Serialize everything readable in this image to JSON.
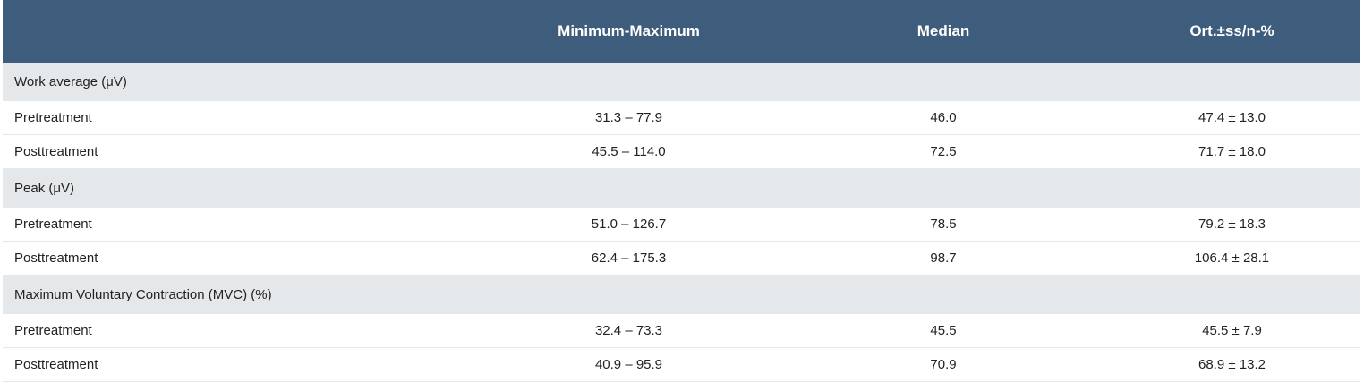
{
  "table": {
    "headers": [
      "",
      "Minimum-Maximum",
      "Median",
      "Ort.±ss/n-%"
    ],
    "sections": [
      {
        "title": "Work average (μV)",
        "rows": [
          {
            "label": "Pretreatment",
            "range": "31.3 – 77.9",
            "median": "46.0",
            "mean": "47.4 ± 13.0"
          },
          {
            "label": "Posttreatment",
            "range": "45.5 – 114.0",
            "median": "72.5",
            "mean": "71.7 ± 18.0"
          }
        ]
      },
      {
        "title": "Peak (μV)",
        "rows": [
          {
            "label": "Pretreatment",
            "range": "51.0 – 126.7",
            "median": "78.5",
            "mean": "79.2 ± 18.3"
          },
          {
            "label": "Posttreatment",
            "range": "62.4 – 175.3",
            "median": "98.7",
            "mean": "106.4 ± 28.1"
          }
        ]
      },
      {
        "title": "Maximum Voluntary Contraction (MVC) (%)",
        "rows": [
          {
            "label": "Pretreatment",
            "range": "32.4 – 73.3",
            "median": "45.5",
            "mean": "45.5 ± 7.9"
          },
          {
            "label": "Posttreatment",
            "range": "40.9 – 95.9",
            "median": "70.9",
            "mean": "68.9 ± 13.2"
          }
        ]
      }
    ]
  },
  "colors": {
    "header_bg": "#3e5c7b",
    "section_bg": "#e4e8eb"
  }
}
